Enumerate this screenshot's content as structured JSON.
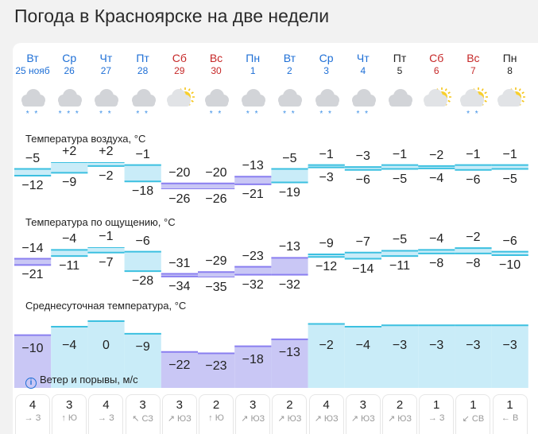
{
  "page": {
    "title": "Погода в Красноярске на две недели"
  },
  "days": [
    {
      "name": "Вт",
      "date": "25 нояб",
      "color": "blue",
      "icon": "cloud-snow-icon",
      "precip": "* *"
    },
    {
      "name": "Ср",
      "date": "26",
      "color": "blue",
      "icon": "cloud-snow-icon",
      "precip": "* * *"
    },
    {
      "name": "Чт",
      "date": "27",
      "color": "blue",
      "icon": "cloud-snow-icon",
      "precip": "* *"
    },
    {
      "name": "Пт",
      "date": "28",
      "color": "blue",
      "icon": "cloud-snow-icon",
      "precip": "* *"
    },
    {
      "name": "Сб",
      "date": "29",
      "color": "red",
      "icon": "sun-cloud-icon",
      "precip": ""
    },
    {
      "name": "Вс",
      "date": "30",
      "color": "red",
      "icon": "cloud-snow-icon",
      "precip": "* *"
    },
    {
      "name": "Пн",
      "date": "1",
      "color": "blue",
      "icon": "cloud-snow-icon",
      "precip": "* *"
    },
    {
      "name": "Вт",
      "date": "2",
      "color": "blue",
      "icon": "cloud-snow-icon",
      "precip": "* *"
    },
    {
      "name": "Ср",
      "date": "3",
      "color": "blue",
      "icon": "cloud-snow-icon",
      "precip": "* *"
    },
    {
      "name": "Чт",
      "date": "4",
      "color": "blue",
      "icon": "cloud-snow-icon",
      "precip": "* *"
    },
    {
      "name": "Пт",
      "date": "5",
      "color": "black",
      "icon": "cloud-icon",
      "precip": ""
    },
    {
      "name": "Сб",
      "date": "6",
      "color": "red",
      "icon": "sun-cloud-icon",
      "precip": ""
    },
    {
      "name": "Вс",
      "date": "7",
      "color": "red",
      "icon": "sun-cloud-snow-icon",
      "precip": "* *"
    },
    {
      "name": "Пн",
      "date": "8",
      "color": "black",
      "icon": "sun-cloud-icon",
      "precip": ""
    }
  ],
  "air": {
    "label": "Температура воздуха, °C",
    "max": [
      "−5",
      "+2",
      "+2",
      "−1",
      "−20",
      "−20",
      "−13",
      "−5",
      "−1",
      "−3",
      "−1",
      "−2",
      "−1",
      "−1"
    ],
    "min": [
      "−12",
      "−9",
      "−2",
      "−18",
      "−26",
      "−26",
      "−21",
      "−19",
      "−3",
      "−6",
      "−5",
      "−4",
      "−6",
      "−5"
    ],
    "max_values": [
      -5,
      2,
      2,
      -1,
      -20,
      -20,
      -13,
      -5,
      -1,
      -3,
      -1,
      -2,
      -1,
      -1
    ],
    "min_values": [
      -12,
      -9,
      -2,
      -18,
      -26,
      -26,
      -21,
      -19,
      -3,
      -6,
      -5,
      -4,
      -6,
      -5
    ]
  },
  "feels": {
    "label": "Температура по ощущению, °C",
    "max": [
      "−14",
      "−4",
      "−1",
      "−6",
      "−31",
      "−29",
      "−23",
      "−13",
      "−9",
      "−7",
      "−5",
      "−4",
      "−2",
      "−6"
    ],
    "min": [
      "−21",
      "−11",
      "−7",
      "−28",
      "−34",
      "−35",
      "−32",
      "−32",
      "−12",
      "−14",
      "−11",
      "−8",
      "−8",
      "−10"
    ],
    "max_values": [
      -14,
      -4,
      -1,
      -6,
      -31,
      -29,
      -23,
      -13,
      -9,
      -7,
      -5,
      -4,
      -2,
      -6
    ],
    "min_values": [
      -21,
      -11,
      -7,
      -28,
      -34,
      -35,
      -32,
      -32,
      -12,
      -14,
      -11,
      -8,
      -8,
      -10
    ]
  },
  "avg": {
    "label": "Среднесуточная температура, °C",
    "values_text": [
      "−10",
      "−4",
      "0",
      "−9",
      "−22",
      "−23",
      "−18",
      "−13",
      "−2",
      "−4",
      "−3",
      "−3",
      "−3",
      "−3"
    ],
    "values": [
      -10,
      -4,
      0,
      -9,
      -22,
      -23,
      -18,
      -13,
      -2,
      -4,
      -3,
      -3,
      -3,
      -3
    ]
  },
  "wind": {
    "label": "Ветер и порывы, м/с",
    "info_icon": "info-icon",
    "speeds": [
      "4",
      "3",
      "4",
      "3",
      "3",
      "2",
      "3",
      "2",
      "4",
      "3",
      "2",
      "1",
      "1",
      "1"
    ],
    "dirs": [
      "→ З",
      "↑ Ю",
      "→ З",
      "↖ СЗ",
      "↗ ЮЗ",
      "↑ Ю",
      "↗ ЮЗ",
      "↗ ЮЗ",
      "↗ ЮЗ",
      "↗ ЮЗ",
      "↗ ЮЗ",
      "→ З",
      "↙ СВ",
      "← В"
    ]
  },
  "colors": {
    "blue": "#1e6fd6",
    "red": "#c62828",
    "cold_fill": "#c9c7f5",
    "cold_line": "#8a7ff0",
    "mild_fill": "#c9ecf8",
    "mild_line": "#3cc0e0"
  }
}
